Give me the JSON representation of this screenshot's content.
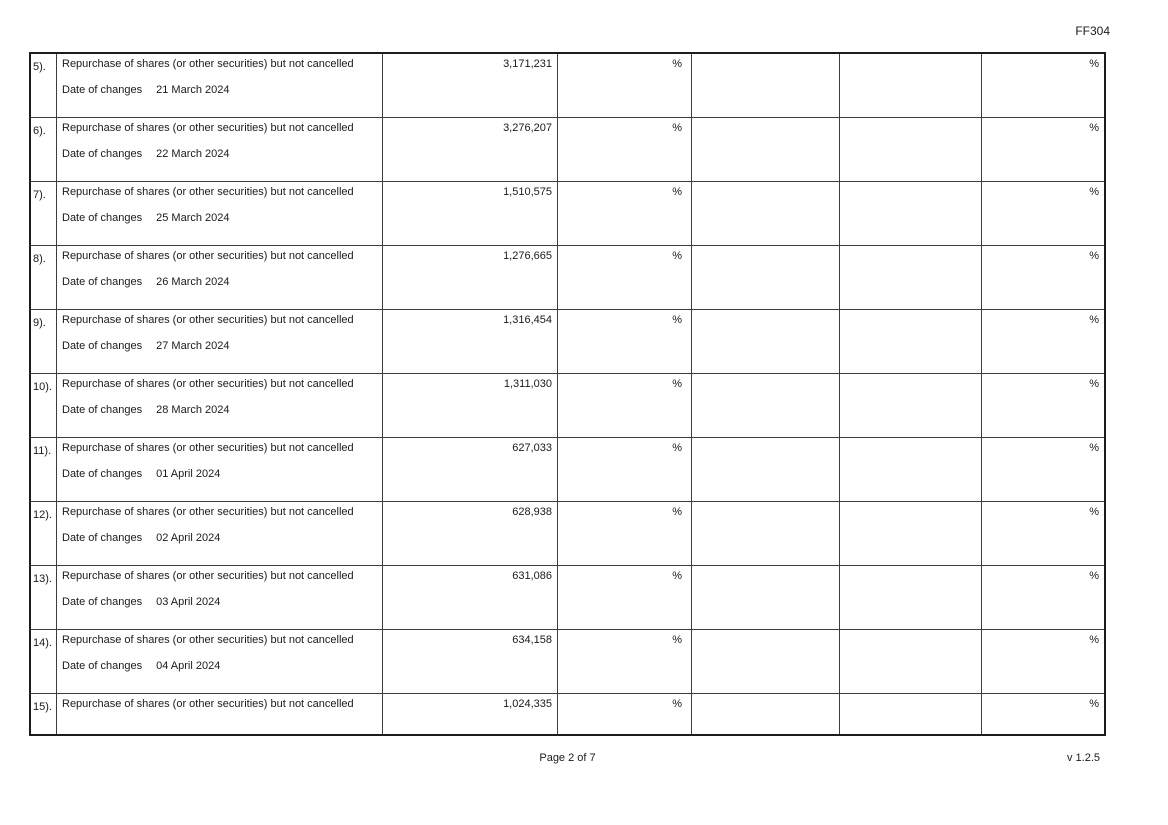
{
  "page": {
    "form_code": "FF304",
    "footer": {
      "page_indicator": "Page 2 of 7",
      "version": "v 1.2.5"
    }
  },
  "table": {
    "rows": [
      {
        "num": "5).",
        "description": "Repurchase of shares (or other securities) but not cancelled",
        "date_label": "Date of changes",
        "date": "21 March 2024",
        "value": "3,171,231",
        "pct1": "%",
        "pct2": "%"
      },
      {
        "num": "6).",
        "description": "Repurchase of shares (or other securities) but not cancelled",
        "date_label": "Date of changes",
        "date": "22 March 2024",
        "value": "3,276,207",
        "pct1": "%",
        "pct2": "%"
      },
      {
        "num": "7).",
        "description": "Repurchase of shares (or other securities) but not cancelled",
        "date_label": "Date of changes",
        "date": "25 March 2024",
        "value": "1,510,575",
        "pct1": "%",
        "pct2": "%"
      },
      {
        "num": "8).",
        "description": "Repurchase of shares (or other securities) but not cancelled",
        "date_label": "Date of changes",
        "date": "26 March 2024",
        "value": "1,276,665",
        "pct1": "%",
        "pct2": "%"
      },
      {
        "num": "9).",
        "description": "Repurchase of shares (or other securities) but not cancelled",
        "date_label": "Date of changes",
        "date": "27 March 2024",
        "value": "1,316,454",
        "pct1": "%",
        "pct2": "%"
      },
      {
        "num": "10).",
        "description": "Repurchase of shares (or other securities) but not cancelled",
        "date_label": "Date of changes",
        "date": "28 March 2024",
        "value": "1,311,030",
        "pct1": "%",
        "pct2": "%"
      },
      {
        "num": "11).",
        "description": "Repurchase of shares (or other securities) but not cancelled",
        "date_label": "Date of changes",
        "date": "01 April 2024",
        "value": "627,033",
        "pct1": "%",
        "pct2": "%"
      },
      {
        "num": "12).",
        "description": "Repurchase of shares (or other securities) but not cancelled",
        "date_label": "Date of changes",
        "date": "02 April 2024",
        "value": "628,938",
        "pct1": "%",
        "pct2": "%"
      },
      {
        "num": "13).",
        "description": "Repurchase of shares (or other securities) but not cancelled",
        "date_label": "Date of changes",
        "date": "03 April 2024",
        "value": "631,086",
        "pct1": "%",
        "pct2": "%"
      },
      {
        "num": "14).",
        "description": "Repurchase of shares (or other securities) but not cancelled",
        "date_label": "Date of changes",
        "date": "04 April 2024",
        "value": "634,158",
        "pct1": "%",
        "pct2": "%"
      },
      {
        "num": "15).",
        "description": "Repurchase of shares (or other securities) but not cancelled",
        "date_label": "",
        "date": "",
        "value": "1,024,335",
        "pct1": "%",
        "pct2": "%"
      }
    ]
  }
}
